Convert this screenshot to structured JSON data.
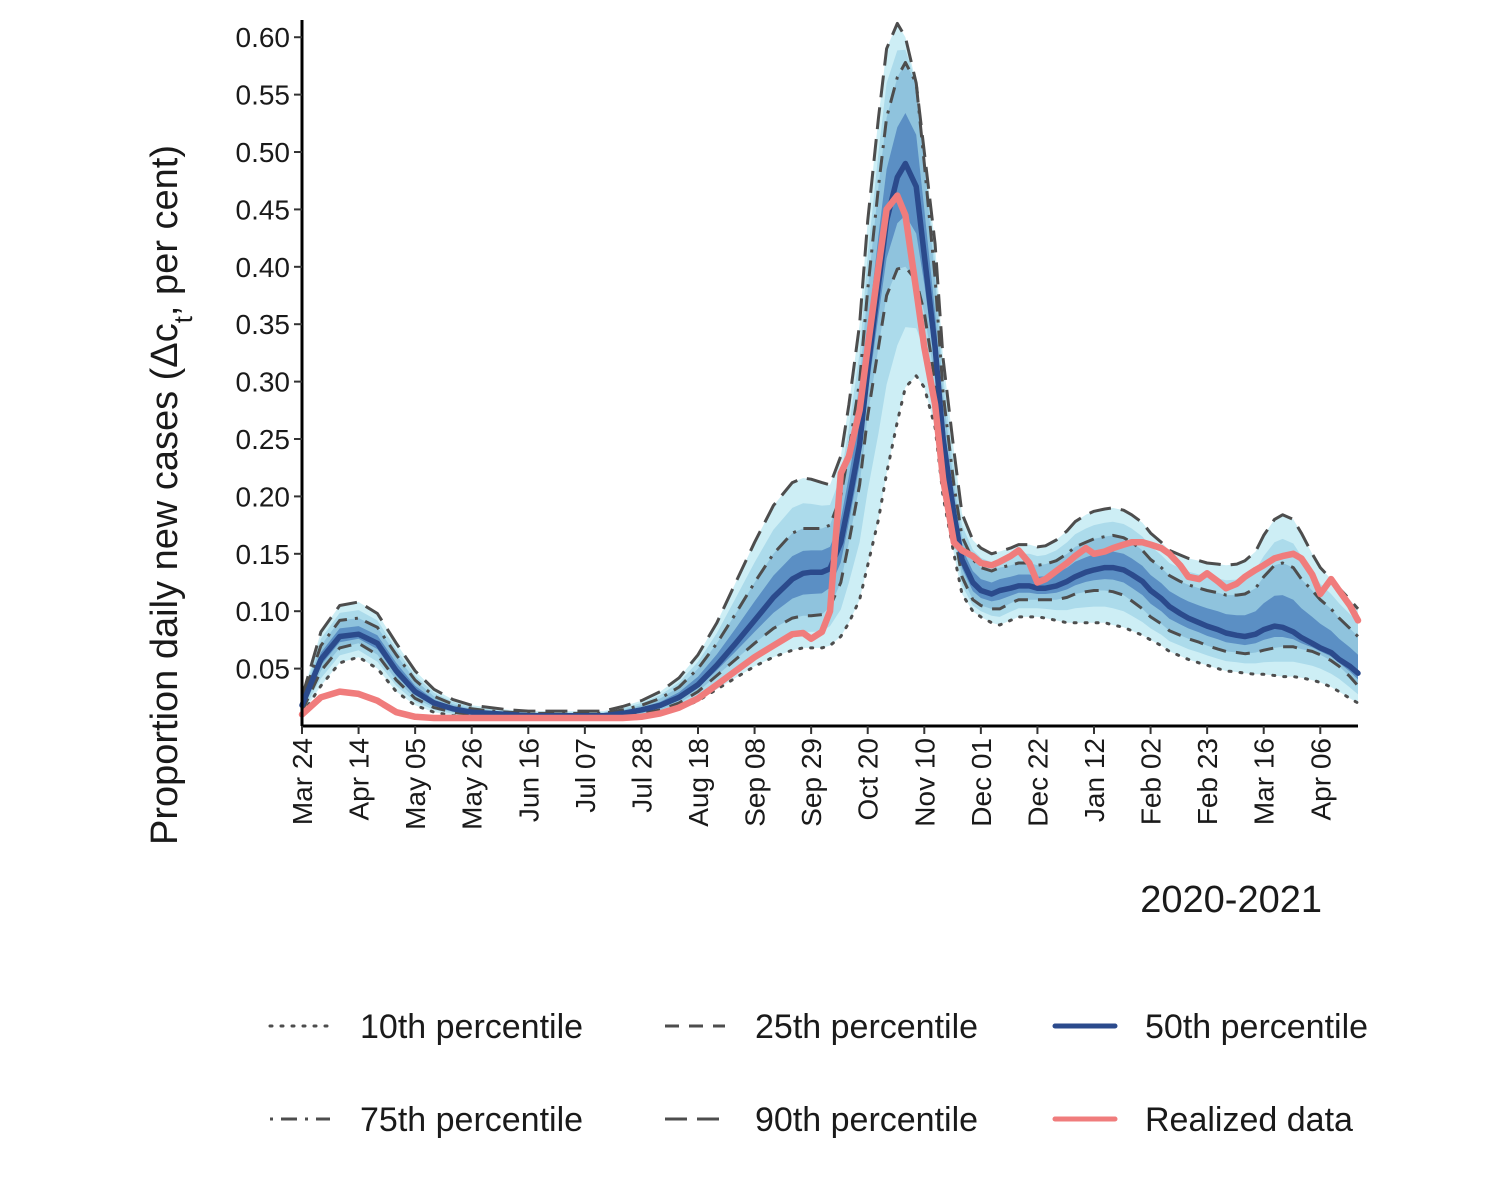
{
  "chart_data": {
    "type": "line",
    "title": "",
    "xlabel": "2020-2021",
    "ylabel_prefix": "Proportion daily new cases (",
    "ylabel_delta": "Δc",
    "ylabel_sub": "t",
    "ylabel_suffix": ", per cent)",
    "ylim": [
      0.0,
      0.615
    ],
    "xlim": [
      0,
      392
    ],
    "x_tick_labels": [
      "Mar 24",
      "Apr 14",
      "May 05",
      "May 26",
      "Jun 16",
      "Jul 07",
      "Jul 28",
      "Aug 18",
      "Sep 08",
      "Sep 29",
      "Oct 20",
      "Nov 10",
      "Dec 01",
      "Dec 22",
      "Jan 12",
      "Feb 02",
      "Feb 23",
      "Mar 16",
      "Apr 06"
    ],
    "x_tick_days": [
      0,
      21,
      42,
      63,
      84,
      105,
      126,
      147,
      168,
      189,
      210,
      231,
      252,
      273,
      294,
      315,
      336,
      357,
      378
    ],
    "y_ticks": [
      0.05,
      0.1,
      0.15,
      0.2,
      0.25,
      0.3,
      0.35,
      0.4,
      0.45,
      0.5,
      0.55,
      0.6
    ],
    "y_tick_labels": [
      "0.05",
      "0.10",
      "0.15",
      "0.20",
      "0.25",
      "0.30",
      "0.35",
      "0.40",
      "0.45",
      "0.50",
      "0.55",
      "0.60"
    ],
    "x": [
      0,
      7,
      14,
      21,
      28,
      35,
      42,
      49,
      56,
      63,
      70,
      77,
      84,
      91,
      98,
      105,
      112,
      119,
      126,
      133,
      140,
      147,
      154,
      161,
      168,
      175,
      182,
      186,
      189,
      193,
      196,
      200,
      203,
      207,
      210,
      214,
      217,
      221,
      224,
      228,
      231,
      235,
      238,
      242,
      245,
      249,
      252,
      256,
      259,
      263,
      266,
      270,
      273,
      276,
      280,
      284,
      287,
      291,
      294,
      298,
      301,
      305,
      308,
      312,
      315,
      319,
      322,
      326,
      329,
      333,
      336,
      340,
      343,
      347,
      350,
      354,
      357,
      361,
      364,
      368,
      371,
      375,
      378,
      382,
      385,
      389,
      392
    ],
    "series": [
      {
        "name": "10th percentile",
        "values": [
          0.01,
          0.035,
          0.055,
          0.06,
          0.05,
          0.03,
          0.018,
          0.012,
          0.009,
          0.008,
          0.007,
          0.006,
          0.006,
          0.006,
          0.006,
          0.006,
          0.006,
          0.007,
          0.008,
          0.01,
          0.015,
          0.022,
          0.032,
          0.042,
          0.052,
          0.06,
          0.066,
          0.068,
          0.068,
          0.068,
          0.07,
          0.078,
          0.09,
          0.11,
          0.14,
          0.18,
          0.22,
          0.265,
          0.295,
          0.305,
          0.295,
          0.26,
          0.2,
          0.15,
          0.115,
          0.1,
          0.095,
          0.09,
          0.088,
          0.092,
          0.095,
          0.095,
          0.095,
          0.094,
          0.092,
          0.09,
          0.09,
          0.09,
          0.09,
          0.09,
          0.088,
          0.086,
          0.083,
          0.079,
          0.075,
          0.07,
          0.065,
          0.061,
          0.058,
          0.055,
          0.053,
          0.05,
          0.048,
          0.047,
          0.046,
          0.045,
          0.045,
          0.044,
          0.043,
          0.043,
          0.042,
          0.04,
          0.038,
          0.034,
          0.03,
          0.024,
          0.02
        ]
      },
      {
        "name": "25th percentile",
        "values": [
          0.013,
          0.048,
          0.068,
          0.072,
          0.062,
          0.04,
          0.024,
          0.016,
          0.012,
          0.01,
          0.009,
          0.008,
          0.007,
          0.007,
          0.007,
          0.007,
          0.007,
          0.009,
          0.011,
          0.014,
          0.02,
          0.03,
          0.044,
          0.058,
          0.072,
          0.085,
          0.094,
          0.096,
          0.096,
          0.097,
          0.104,
          0.125,
          0.16,
          0.21,
          0.27,
          0.33,
          0.375,
          0.398,
          0.4,
          0.388,
          0.36,
          0.3,
          0.235,
          0.17,
          0.13,
          0.11,
          0.105,
          0.102,
          0.102,
          0.107,
          0.11,
          0.11,
          0.11,
          0.11,
          0.11,
          0.112,
          0.115,
          0.117,
          0.118,
          0.118,
          0.117,
          0.114,
          0.109,
          0.102,
          0.095,
          0.089,
          0.083,
          0.079,
          0.076,
          0.073,
          0.07,
          0.067,
          0.065,
          0.064,
          0.063,
          0.064,
          0.066,
          0.068,
          0.069,
          0.069,
          0.067,
          0.065,
          0.062,
          0.057,
          0.052,
          0.043,
          0.035
        ]
      },
      {
        "name": "50th percentile",
        "values": [
          0.018,
          0.058,
          0.078,
          0.08,
          0.072,
          0.048,
          0.03,
          0.02,
          0.015,
          0.012,
          0.011,
          0.01,
          0.009,
          0.009,
          0.009,
          0.009,
          0.009,
          0.011,
          0.014,
          0.018,
          0.025,
          0.036,
          0.053,
          0.072,
          0.092,
          0.112,
          0.128,
          0.133,
          0.134,
          0.134,
          0.137,
          0.16,
          0.195,
          0.245,
          0.31,
          0.385,
          0.44,
          0.478,
          0.49,
          0.47,
          0.41,
          0.33,
          0.25,
          0.185,
          0.145,
          0.125,
          0.118,
          0.115,
          0.118,
          0.12,
          0.122,
          0.122,
          0.12,
          0.12,
          0.122,
          0.126,
          0.13,
          0.134,
          0.136,
          0.138,
          0.138,
          0.136,
          0.132,
          0.126,
          0.118,
          0.111,
          0.104,
          0.098,
          0.094,
          0.09,
          0.087,
          0.084,
          0.081,
          0.079,
          0.078,
          0.08,
          0.084,
          0.087,
          0.086,
          0.082,
          0.077,
          0.072,
          0.068,
          0.064,
          0.058,
          0.052,
          0.046
        ]
      },
      {
        "name": "75th percentile",
        "values": [
          0.022,
          0.07,
          0.092,
          0.094,
          0.086,
          0.062,
          0.04,
          0.026,
          0.019,
          0.015,
          0.013,
          0.012,
          0.011,
          0.011,
          0.011,
          0.011,
          0.011,
          0.014,
          0.018,
          0.024,
          0.034,
          0.05,
          0.072,
          0.098,
          0.125,
          0.15,
          0.168,
          0.172,
          0.172,
          0.172,
          0.175,
          0.2,
          0.24,
          0.3,
          0.38,
          0.47,
          0.53,
          0.565,
          0.578,
          0.56,
          0.49,
          0.39,
          0.29,
          0.21,
          0.165,
          0.145,
          0.138,
          0.135,
          0.138,
          0.14,
          0.142,
          0.142,
          0.14,
          0.141,
          0.144,
          0.15,
          0.156,
          0.16,
          0.163,
          0.165,
          0.166,
          0.164,
          0.16,
          0.153,
          0.145,
          0.138,
          0.131,
          0.126,
          0.123,
          0.12,
          0.118,
          0.116,
          0.114,
          0.114,
          0.115,
          0.12,
          0.13,
          0.14,
          0.142,
          0.138,
          0.128,
          0.118,
          0.11,
          0.102,
          0.094,
          0.085,
          0.078
        ]
      },
      {
        "name": "90th percentile",
        "values": [
          0.025,
          0.082,
          0.105,
          0.108,
          0.098,
          0.072,
          0.048,
          0.032,
          0.023,
          0.018,
          0.016,
          0.014,
          0.013,
          0.013,
          0.013,
          0.013,
          0.013,
          0.017,
          0.022,
          0.03,
          0.042,
          0.062,
          0.09,
          0.125,
          0.16,
          0.192,
          0.212,
          0.216,
          0.215,
          0.212,
          0.21,
          0.235,
          0.28,
          0.35,
          0.44,
          0.53,
          0.59,
          0.612,
          0.6,
          0.56,
          0.5,
          0.42,
          0.32,
          0.24,
          0.185,
          0.162,
          0.155,
          0.15,
          0.152,
          0.155,
          0.158,
          0.158,
          0.156,
          0.157,
          0.162,
          0.17,
          0.178,
          0.184,
          0.187,
          0.189,
          0.19,
          0.188,
          0.184,
          0.177,
          0.168,
          0.16,
          0.153,
          0.149,
          0.146,
          0.144,
          0.142,
          0.141,
          0.14,
          0.141,
          0.144,
          0.152,
          0.166,
          0.18,
          0.184,
          0.18,
          0.168,
          0.15,
          0.138,
          0.128,
          0.12,
          0.11,
          0.102
        ]
      },
      {
        "name": "Realized data",
        "values": [
          0.01,
          0.025,
          0.03,
          0.028,
          0.022,
          0.012,
          0.008,
          0.007,
          0.007,
          0.007,
          0.007,
          0.007,
          0.007,
          0.007,
          0.007,
          0.007,
          0.007,
          0.007,
          0.008,
          0.011,
          0.016,
          0.024,
          0.036,
          0.048,
          0.06,
          0.07,
          0.08,
          0.081,
          0.076,
          0.082,
          0.1,
          0.22,
          0.235,
          0.275,
          0.33,
          0.4,
          0.45,
          0.462,
          0.445,
          0.38,
          0.33,
          0.28,
          0.215,
          0.16,
          0.153,
          0.148,
          0.142,
          0.14,
          0.143,
          0.148,
          0.153,
          0.142,
          0.125,
          0.128,
          0.135,
          0.142,
          0.148,
          0.155,
          0.15,
          0.152,
          0.155,
          0.158,
          0.16,
          0.16,
          0.158,
          0.155,
          0.15,
          0.14,
          0.13,
          0.128,
          0.133,
          0.126,
          0.12,
          0.124,
          0.13,
          0.136,
          0.14,
          0.146,
          0.148,
          0.15,
          0.146,
          0.132,
          0.115,
          0.128,
          0.118,
          0.105,
          0.092
        ]
      }
    ],
    "legend_position": "bottom"
  },
  "colors": {
    "p10": "#4d4d4d",
    "p25": "#4d4d4d",
    "p50": "#2b4a8c",
    "p75": "#4d4d4d",
    "p90": "#4d4d4d",
    "realized": "#f07c7c",
    "band_outer": "#cdeef5",
    "band_mid": "#8fc3dd",
    "band_inner": "#5b8fc4"
  },
  "legend": [
    {
      "key": "p10",
      "label": "10th percentile"
    },
    {
      "key": "p25",
      "label": "25th percentile"
    },
    {
      "key": "p50",
      "label": "50th percentile"
    },
    {
      "key": "p75",
      "label": "75th percentile"
    },
    {
      "key": "p90",
      "label": "90th percentile"
    },
    {
      "key": "realized",
      "label": "Realized data"
    }
  ]
}
